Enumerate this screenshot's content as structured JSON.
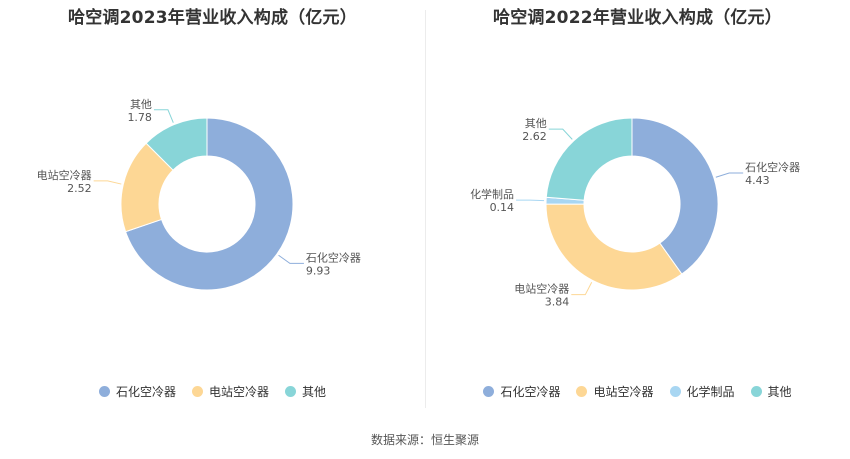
{
  "source": "数据来源：恒生聚源",
  "chart_data": [
    {
      "type": "pie",
      "title": "哈空调2023年营业收入构成（亿元）",
      "categories": [
        "石化空冷器",
        "电站空冷器",
        "其他"
      ],
      "values": [
        9.93,
        2.52,
        1.78
      ],
      "value_labels": [
        "9.93",
        "2.52",
        "1.78"
      ],
      "colors": [
        "#8eaedb",
        "#fdd795",
        "#88d5d8"
      ],
      "legend": "bottom"
    },
    {
      "type": "pie",
      "title": "哈空调2022年营业收入构成（亿元）",
      "categories": [
        "石化空冷器",
        "电站空冷器",
        "化学制品",
        "其他"
      ],
      "values": [
        4.43,
        3.84,
        0.14,
        2.62
      ],
      "value_labels": [
        "4.43",
        "3.84",
        "0.14",
        "2.62"
      ],
      "colors": [
        "#8eaedb",
        "#fdd795",
        "#a8d6f2",
        "#88d5d8"
      ],
      "legend": "bottom"
    }
  ]
}
